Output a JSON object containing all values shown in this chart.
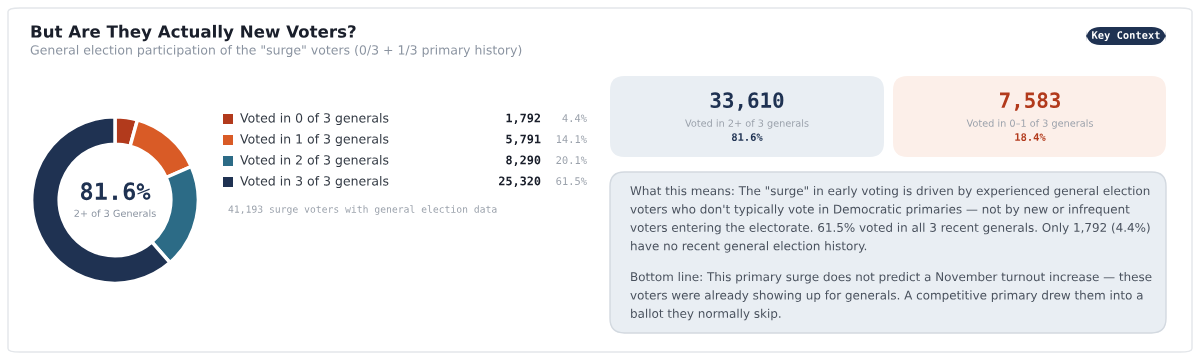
{
  "chart_data": [
    {
      "type": "donut",
      "title": "But Are They Actually New Voters?",
      "subtitle": "General election participation of the \"surge\" voters (0/3 + 1/3 primary history)",
      "categories": [
        "Voted in 0 of 3 generals",
        "Voted in 1 of 3 generals",
        "Voted in 2 of 3 generals",
        "Voted in 3 of 3 generals"
      ],
      "values": [
        1792,
        5791,
        8290,
        25320
      ],
      "value_labels": [
        "1,792",
        "5,791",
        "8,290",
        "25,320"
      ],
      "colors": [
        "#b23a1c",
        "#d95b26",
        "#2c6b86",
        "#1f3252"
      ],
      "legend": "right",
      "annotations": [
        "81.6%",
        "2+ of 3 Generals",
        "4.4%",
        "14.1%",
        "20.1%",
        "61.5%",
        "41,193 surge voters with general election data"
      ]
    },
    {
      "type": "other",
      "annotations": [
        "Key Context",
        "33,610",
        "Voted in 2+ of 3 generals",
        "81.6%",
        "7,583",
        "Voted in 0–1 of 3 generals",
        "18.4%",
        "What this means: The \"surge\" in early voting is driven by experienced general election voters who don't typically vote in Democratic primaries — not by new or infrequent voters entering the electorate. 61.5% voted in all 3 recent generals. Only 1,792 (4.4%) have no recent general election history.",
        "Bottom line: This primary surge does not predict a November turnout increase — these voters were already showing up for generals. A competitive primary drew them into a ballot they normally skip."
      ]
    }
  ]
}
